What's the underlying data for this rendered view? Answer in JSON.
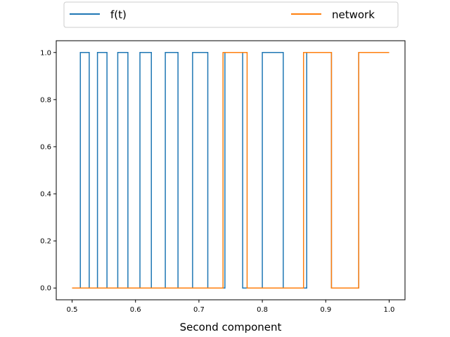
{
  "chart_data": {
    "type": "line",
    "step": true,
    "xlabel": "Second component",
    "ylabel": "",
    "title": "",
    "xlim": [
      0.475,
      1.025
    ],
    "ylim": [
      -0.05,
      1.05
    ],
    "xticks": [
      0.5,
      0.6,
      0.7,
      0.8,
      0.9,
      1.0
    ],
    "xtick_labels": [
      "0.5",
      "0.6",
      "0.7",
      "0.8",
      "0.9",
      "1.0"
    ],
    "yticks": [
      0.0,
      0.2,
      0.4,
      0.6,
      0.8,
      1.0
    ],
    "ytick_labels": [
      "0.0",
      "0.2",
      "0.4",
      "0.6",
      "0.8",
      "1.0"
    ],
    "grid": false,
    "legend": {
      "placement": "top, above plot, two columns",
      "entries": [
        "f(t)",
        "network"
      ]
    },
    "series": [
      {
        "name": "f(t)",
        "color": "#1f77b4",
        "x": [
          0.5,
          0.513,
          0.513,
          0.527,
          0.527,
          0.54,
          0.54,
          0.555,
          0.555,
          0.572,
          0.572,
          0.588,
          0.588,
          0.607,
          0.607,
          0.625,
          0.625,
          0.647,
          0.647,
          0.667,
          0.667,
          0.69,
          0.69,
          0.714,
          0.714,
          0.741,
          0.741,
          0.769,
          0.769,
          0.8,
          0.8,
          0.833,
          0.833,
          0.87,
          0.87,
          0.909,
          0.909,
          0.952,
          0.952,
          1.0
        ],
        "y": [
          0,
          0,
          1,
          1,
          0,
          0,
          1,
          1,
          0,
          0,
          1,
          1,
          0,
          0,
          1,
          1,
          0,
          0,
          1,
          1,
          0,
          0,
          1,
          1,
          0,
          0,
          1,
          1,
          0,
          0,
          1,
          1,
          0,
          0,
          1,
          1,
          0,
          0,
          1,
          1
        ]
      },
      {
        "name": "network",
        "color": "#ff7f0e",
        "x": [
          0.5,
          0.738,
          0.738,
          0.776,
          0.776,
          0.865,
          0.865,
          0.909,
          0.909,
          0.952,
          0.952,
          1.0
        ],
        "y": [
          0,
          0,
          1,
          1,
          0,
          0,
          1,
          1,
          0,
          0,
          1,
          1
        ]
      }
    ]
  }
}
